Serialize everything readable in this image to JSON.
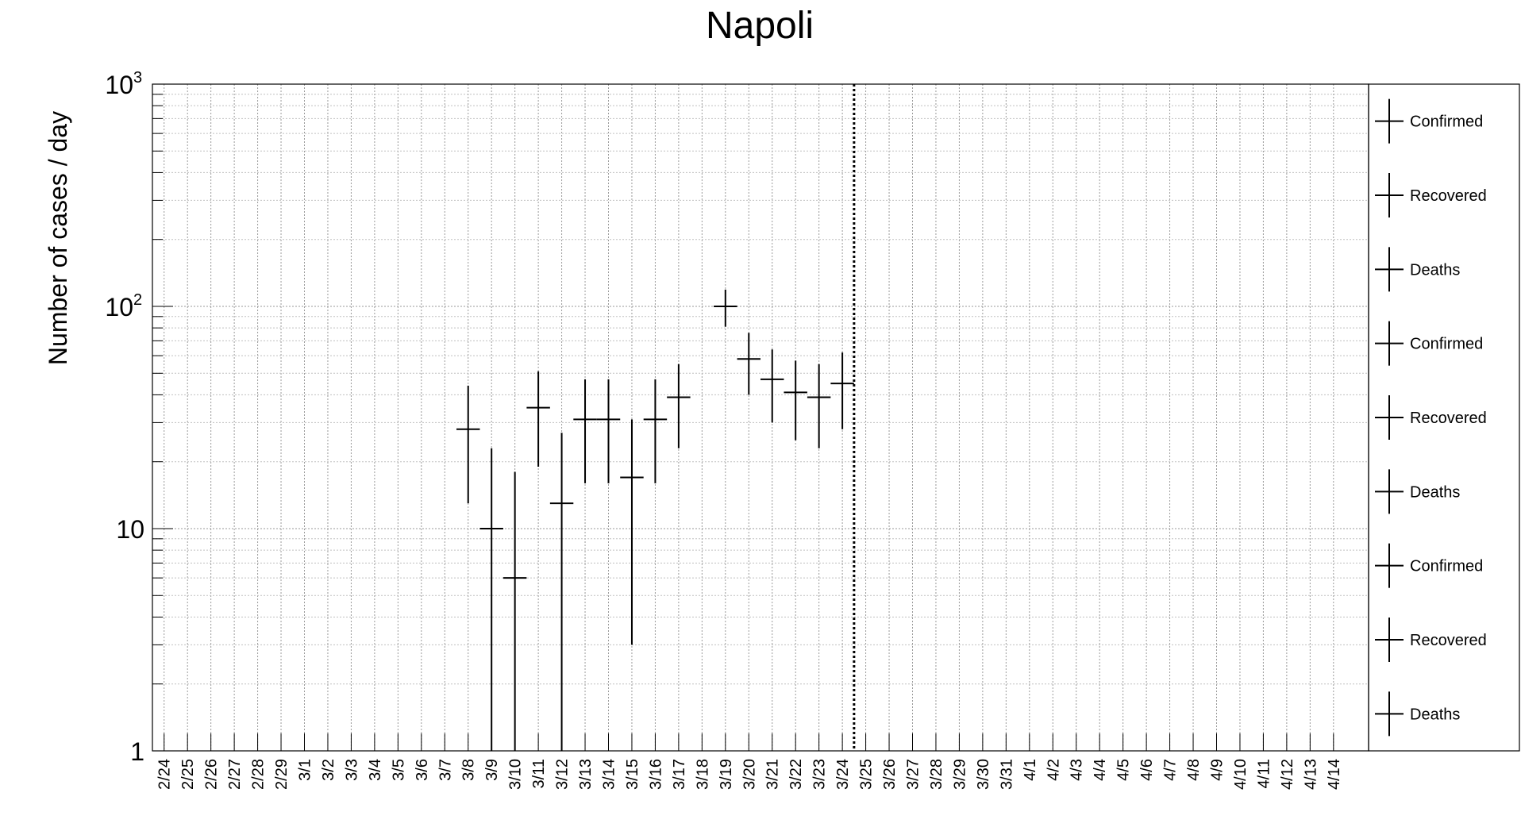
{
  "chart_data": {
    "type": "scatter",
    "title": "Napoli",
    "ylabel": "Number of cases / day",
    "xlabel": "",
    "yscale": "log",
    "ylim": [
      1,
      1000
    ],
    "ytick_labels": {
      "1": "1",
      "10": "10",
      "100": "10",
      "100_exp": "2",
      "1000": "10",
      "1000_exp": "3"
    },
    "categories": [
      "2/24",
      "2/25",
      "2/26",
      "2/27",
      "2/28",
      "2/29",
      "3/1",
      "3/2",
      "3/3",
      "3/4",
      "3/5",
      "3/6",
      "3/7",
      "3/8",
      "3/9",
      "3/10",
      "3/11",
      "3/12",
      "3/13",
      "3/14",
      "3/15",
      "3/16",
      "3/17",
      "3/18",
      "3/19",
      "3/20",
      "3/21",
      "3/22",
      "3/23",
      "3/24",
      "3/25",
      "3/26",
      "3/27",
      "3/28",
      "3/29",
      "3/30",
      "3/31",
      "4/1",
      "4/2",
      "4/3",
      "4/4",
      "4/5",
      "4/6",
      "4/7",
      "4/8",
      "4/9",
      "4/10",
      "4/11",
      "4/12",
      "4/13",
      "4/14"
    ],
    "vertical_line_after": "3/24",
    "grid": true,
    "legend_position": "right",
    "legend": [
      "Confirmed",
      "Recovered",
      "Deaths",
      "Confirmed",
      "Recovered",
      "Deaths",
      "Confirmed",
      "Recovered",
      "Deaths"
    ],
    "series": [
      {
        "name": "Confirmed",
        "color": "#000000",
        "points": [
          {
            "x": "3/8",
            "y": 28,
            "err_low": 13,
            "err_high": 44
          },
          {
            "x": "3/9",
            "y": 10,
            "err_low": 1,
            "err_high": 23
          },
          {
            "x": "3/10",
            "y": 6,
            "err_low": 1,
            "err_high": 18
          },
          {
            "x": "3/11",
            "y": 35,
            "err_low": 19,
            "err_high": 51
          },
          {
            "x": "3/12",
            "y": 13,
            "err_low": 1,
            "err_high": 27
          },
          {
            "x": "3/13",
            "y": 31,
            "err_low": 16,
            "err_high": 47
          },
          {
            "x": "3/14",
            "y": 31,
            "err_low": 16,
            "err_high": 47
          },
          {
            "x": "3/15",
            "y": 17,
            "err_low": 3,
            "err_high": 31
          },
          {
            "x": "3/16",
            "y": 31,
            "err_low": 16,
            "err_high": 47
          },
          {
            "x": "3/17",
            "y": 39,
            "err_low": 23,
            "err_high": 55
          },
          {
            "x": "3/19",
            "y": 100,
            "err_low": 81,
            "err_high": 119
          },
          {
            "x": "3/20",
            "y": 58,
            "err_low": 40,
            "err_high": 76
          },
          {
            "x": "3/21",
            "y": 47,
            "err_low": 30,
            "err_high": 64
          },
          {
            "x": "3/22",
            "y": 41,
            "err_low": 25,
            "err_high": 57
          },
          {
            "x": "3/23",
            "y": 39,
            "err_low": 23,
            "err_high": 55
          },
          {
            "x": "3/24",
            "y": 45,
            "err_low": 28,
            "err_high": 62
          }
        ]
      }
    ]
  }
}
